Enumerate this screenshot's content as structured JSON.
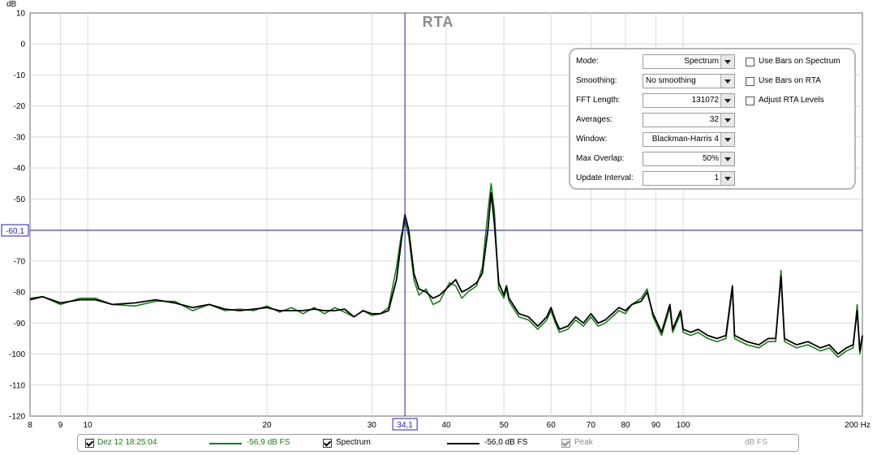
{
  "chart_data": {
    "type": "line",
    "title": "RTA",
    "ylabel": "dB",
    "xunit": "Hz",
    "xscale": "log",
    "xlim": [
      8,
      200
    ],
    "ylim": [
      -120,
      10
    ],
    "grid": true,
    "yticks": [
      "10",
      "0",
      "-10",
      "-20",
      "-30",
      "-40",
      "-50",
      "-60",
      "-70",
      "-80",
      "-90",
      "-100",
      "-110",
      "-120"
    ],
    "xticks": [
      "8",
      "9",
      "10",
      "20",
      "30",
      "40",
      "50",
      "60",
      "70",
      "80",
      "90",
      "100",
      "200 Hz"
    ],
    "cursor": {
      "x": 34.1,
      "y": -60.1,
      "x_label": "34,1",
      "y_label": "-60,1"
    },
    "series": [
      {
        "name": "Dez 12 18:25:04",
        "color": "#1a7a1a",
        "points": [
          [
            8,
            -82
          ],
          [
            8.4,
            -81.5
          ],
          [
            9,
            -84
          ],
          [
            9.7,
            -82
          ],
          [
            10.3,
            -82
          ],
          [
            11,
            -84
          ],
          [
            12,
            -84.5
          ],
          [
            13,
            -83
          ],
          [
            14,
            -83
          ],
          [
            15,
            -86
          ],
          [
            16,
            -84
          ],
          [
            17,
            -86
          ],
          [
            18,
            -85.5
          ],
          [
            19,
            -86
          ],
          [
            20,
            -84.5
          ],
          [
            21,
            -86.5
          ],
          [
            22,
            -85
          ],
          [
            23,
            -87
          ],
          [
            24,
            -85
          ],
          [
            25,
            -87
          ],
          [
            26,
            -85
          ],
          [
            27,
            -86.5
          ],
          [
            28,
            -88
          ],
          [
            29,
            -86
          ],
          [
            30,
            -87.5
          ],
          [
            31,
            -87
          ],
          [
            32,
            -85
          ],
          [
            33,
            -72
          ],
          [
            33.6,
            -62
          ],
          [
            34.1,
            -57
          ],
          [
            34.6,
            -62
          ],
          [
            35.3,
            -76
          ],
          [
            36,
            -81
          ],
          [
            37,
            -79
          ],
          [
            38,
            -84
          ],
          [
            39,
            -83
          ],
          [
            40.5,
            -77
          ],
          [
            41.5,
            -78
          ],
          [
            42.5,
            -82
          ],
          [
            43.5,
            -80
          ],
          [
            45,
            -78
          ],
          [
            46,
            -72
          ],
          [
            47,
            -54
          ],
          [
            47.6,
            -45
          ],
          [
            48.2,
            -54
          ],
          [
            49,
            -79
          ],
          [
            50,
            -82
          ],
          [
            50.5,
            -79
          ],
          [
            51,
            -83
          ],
          [
            53,
            -88
          ],
          [
            55,
            -89
          ],
          [
            57,
            -92
          ],
          [
            59,
            -89
          ],
          [
            60,
            -86
          ],
          [
            61,
            -90
          ],
          [
            62,
            -93
          ],
          [
            64,
            -92
          ],
          [
            66,
            -89
          ],
          [
            68,
            -91
          ],
          [
            70,
            -88
          ],
          [
            72,
            -91
          ],
          [
            74,
            -90
          ],
          [
            76,
            -88
          ],
          [
            78,
            -86
          ],
          [
            80,
            -87
          ],
          [
            82,
            -84
          ],
          [
            85,
            -82
          ],
          [
            87,
            -79
          ],
          [
            89,
            -88
          ],
          [
            92,
            -94
          ],
          [
            95,
            -85
          ],
          [
            96,
            -93
          ],
          [
            99,
            -87
          ],
          [
            100,
            -93
          ],
          [
            103,
            -94
          ],
          [
            106,
            -93
          ],
          [
            110,
            -95
          ],
          [
            114,
            -96
          ],
          [
            118,
            -95
          ],
          [
            121,
            -79
          ],
          [
            122,
            -95
          ],
          [
            128,
            -97
          ],
          [
            134,
            -98
          ],
          [
            139,
            -96
          ],
          [
            143,
            -96
          ],
          [
            146,
            -73
          ],
          [
            148,
            -96
          ],
          [
            155,
            -98
          ],
          [
            162,
            -97
          ],
          [
            170,
            -99
          ],
          [
            176,
            -98
          ],
          [
            182,
            -101
          ],
          [
            188,
            -99
          ],
          [
            193,
            -98
          ],
          [
            196,
            -84
          ],
          [
            198,
            -100
          ],
          [
            200,
            -95
          ]
        ]
      },
      {
        "name": "Spectrum",
        "color": "#000000",
        "points": [
          [
            8,
            -82.5
          ],
          [
            8.4,
            -81.5
          ],
          [
            9,
            -83.5
          ],
          [
            9.7,
            -82.5
          ],
          [
            10.3,
            -82.5
          ],
          [
            11,
            -84
          ],
          [
            12,
            -83.5
          ],
          [
            13,
            -82.5
          ],
          [
            14,
            -83.5
          ],
          [
            15,
            -85
          ],
          [
            16,
            -84
          ],
          [
            17,
            -85.5
          ],
          [
            18,
            -86
          ],
          [
            19,
            -85.5
          ],
          [
            20,
            -85
          ],
          [
            21,
            -86
          ],
          [
            22,
            -86
          ],
          [
            23,
            -86
          ],
          [
            24,
            -85.5
          ],
          [
            25,
            -86
          ],
          [
            26,
            -86
          ],
          [
            27,
            -85.5
          ],
          [
            28,
            -88
          ],
          [
            29,
            -86
          ],
          [
            30,
            -87
          ],
          [
            31,
            -87
          ],
          [
            32,
            -86
          ],
          [
            33,
            -76
          ],
          [
            33.6,
            -64
          ],
          [
            34.1,
            -55
          ],
          [
            34.6,
            -60
          ],
          [
            35.3,
            -74
          ],
          [
            36,
            -79
          ],
          [
            37,
            -80
          ],
          [
            38,
            -82
          ],
          [
            39,
            -81
          ],
          [
            40.5,
            -78
          ],
          [
            41.5,
            -76
          ],
          [
            42.5,
            -80
          ],
          [
            43.5,
            -79
          ],
          [
            45,
            -77
          ],
          [
            46,
            -74
          ],
          [
            47,
            -60
          ],
          [
            47.6,
            -48
          ],
          [
            48.2,
            -58
          ],
          [
            49,
            -77
          ],
          [
            50,
            -81
          ],
          [
            50.5,
            -78
          ],
          [
            51,
            -82
          ],
          [
            53,
            -87
          ],
          [
            55,
            -88
          ],
          [
            57,
            -91
          ],
          [
            59,
            -88
          ],
          [
            60,
            -85
          ],
          [
            61,
            -89
          ],
          [
            62,
            -92
          ],
          [
            64,
            -91
          ],
          [
            66,
            -88
          ],
          [
            68,
            -90
          ],
          [
            70,
            -87
          ],
          [
            72,
            -90
          ],
          [
            74,
            -89
          ],
          [
            76,
            -87
          ],
          [
            78,
            -85
          ],
          [
            80,
            -86
          ],
          [
            82,
            -84
          ],
          [
            85,
            -83
          ],
          [
            87,
            -80
          ],
          [
            89,
            -87
          ],
          [
            92,
            -93
          ],
          [
            95,
            -84
          ],
          [
            96,
            -92
          ],
          [
            99,
            -86
          ],
          [
            100,
            -92
          ],
          [
            103,
            -93
          ],
          [
            106,
            -92
          ],
          [
            110,
            -94
          ],
          [
            114,
            -95
          ],
          [
            118,
            -94
          ],
          [
            121,
            -78
          ],
          [
            122,
            -94
          ],
          [
            128,
            -96
          ],
          [
            134,
            -97
          ],
          [
            139,
            -95
          ],
          [
            143,
            -95
          ],
          [
            146,
            -75
          ],
          [
            148,
            -95
          ],
          [
            155,
            -97
          ],
          [
            162,
            -96
          ],
          [
            170,
            -98
          ],
          [
            176,
            -97
          ],
          [
            182,
            -100
          ],
          [
            188,
            -98
          ],
          [
            193,
            -97
          ],
          [
            196,
            -86
          ],
          [
            198,
            -99
          ],
          [
            200,
            -94
          ]
        ]
      }
    ]
  },
  "controls": {
    "mode": {
      "label": "Mode:",
      "value": "Spectrum"
    },
    "smoothing": {
      "label": "Smoothing:",
      "value": "No  smoothing"
    },
    "fft_length": {
      "label": "FFT Length:",
      "value": "131072"
    },
    "averages": {
      "label": "Averages:",
      "value": "32"
    },
    "window": {
      "label": "Window:",
      "value": "Blackman-Harris 4"
    },
    "max_overlap": {
      "label": "Max Overlap:",
      "value": "50%"
    },
    "update_interval": {
      "label": "Update Interval:",
      "value": "1"
    },
    "use_bars_spectrum": {
      "label": "Use Bars on Spectrum",
      "checked": false
    },
    "use_bars_rta": {
      "label": "Use Bars on RTA",
      "checked": false
    },
    "adjust_rta_levels": {
      "label": "Adjust RTA Levels",
      "checked": false
    }
  },
  "legend": {
    "measurement": {
      "label": "Dez 12 18:25:04",
      "value": "-56,9 dB FS",
      "color": "#1a7a1a"
    },
    "spectrum": {
      "label": "Spectrum",
      "value": "-56,0 dB FS",
      "color": "#000000"
    },
    "peak": {
      "label": "Peak"
    },
    "units": "dB FS"
  }
}
